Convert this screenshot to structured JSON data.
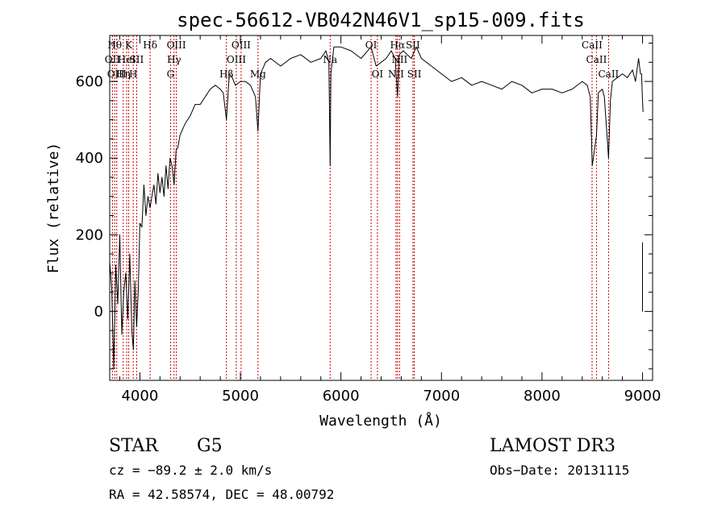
{
  "chart_data": {
    "type": "line",
    "title": "spec-56612-VB042N46V1_sp15-009.fits",
    "xlabel": "Wavelength (Å)",
    "ylabel": "Flux (relative)",
    "xlim": [
      3700,
      9100
    ],
    "ylim": [
      -180,
      720
    ],
    "xticks": [
      4000,
      5000,
      6000,
      7000,
      8000,
      9000
    ],
    "yticks": [
      0,
      200,
      400,
      600
    ],
    "series": [
      {
        "name": "flux",
        "x": [
          3700,
          3720,
          3740,
          3760,
          3780,
          3800,
          3820,
          3840,
          3860,
          3880,
          3900,
          3920,
          3935,
          3950,
          3968,
          3985,
          4000,
          4020,
          4040,
          4060,
          4080,
          4101,
          4120,
          4140,
          4160,
          4180,
          4200,
          4220,
          4240,
          4260,
          4280,
          4300,
          4320,
          4340,
          4360,
          4380,
          4400,
          4450,
          4500,
          4550,
          4600,
          4650,
          4700,
          4750,
          4800,
          4830,
          4861,
          4890,
          4920,
          4950,
          5000,
          5050,
          5100,
          5150,
          5175,
          5200,
          5250,
          5300,
          5400,
          5500,
          5600,
          5700,
          5800,
          5850,
          5880,
          5893,
          5900,
          5930,
          6000,
          6100,
          6200,
          6300,
          6350,
          6400,
          6450,
          6500,
          6540,
          6563,
          6580,
          6620,
          6700,
          6750,
          6800,
          6900,
          7000,
          7100,
          7200,
          7300,
          7400,
          7500,
          7600,
          7700,
          7800,
          7900,
          8000,
          8100,
          8200,
          8300,
          8400,
          8450,
          8480,
          8500,
          8542,
          8560,
          8600,
          8620,
          8662,
          8680,
          8700,
          8750,
          8800,
          8850,
          8900,
          8930,
          8960,
          8980,
          8990,
          9000,
          9005
        ],
        "values": [
          130,
          60,
          -150,
          120,
          20,
          200,
          -60,
          50,
          100,
          -20,
          150,
          -50,
          -100,
          80,
          -40,
          60,
          230,
          220,
          330,
          250,
          300,
          270,
          300,
          330,
          280,
          360,
          310,
          350,
          300,
          380,
          320,
          400,
          380,
          330,
          420,
          430,
          460,
          490,
          510,
          540,
          540,
          560,
          580,
          590,
          580,
          570,
          500,
          620,
          610,
          590,
          600,
          600,
          590,
          560,
          470,
          620,
          650,
          660,
          640,
          660,
          670,
          650,
          660,
          680,
          650,
          380,
          620,
          690,
          690,
          680,
          660,
          690,
          640,
          650,
          660,
          680,
          660,
          560,
          670,
          680,
          660,
          690,
          660,
          640,
          620,
          600,
          610,
          590,
          600,
          590,
          580,
          600,
          590,
          570,
          580,
          580,
          570,
          580,
          600,
          590,
          560,
          380,
          460,
          570,
          580,
          560,
          400,
          550,
          600,
          610,
          620,
          610,
          630,
          600,
          660,
          620,
          620,
          550,
          520
        ]
      },
      {
        "name": "edge-drop",
        "x": [
          9000,
          9000,
          9002
        ],
        "values": [
          180,
          0,
          0
        ]
      }
    ],
    "lines": [
      {
        "wave": 3727,
        "label": "OII",
        "row": 1
      },
      {
        "wave": 3750,
        "label": "Hθ",
        "row": 0
      },
      {
        "wave": 3770,
        "label": "OIII",
        "row": 2
      },
      {
        "wave": 3835,
        "label": "Hη",
        "row": 2
      },
      {
        "wave": 3869,
        "label": "HeI",
        "row": 1
      },
      {
        "wave": 3889,
        "label": "K",
        "row": 0
      },
      {
        "wave": 3934,
        "label": "H",
        "row": 2
      },
      {
        "wave": 3968,
        "label": "SII",
        "row": 1
      },
      {
        "wave": 4102,
        "label": "Hδ",
        "row": 0
      },
      {
        "wave": 4305,
        "label": "G",
        "row": 2
      },
      {
        "wave": 4340,
        "label": "Hγ",
        "row": 1
      },
      {
        "wave": 4363,
        "label": "OIII",
        "row": 0
      },
      {
        "wave": 4861,
        "label": "Hβ",
        "row": 2
      },
      {
        "wave": 4959,
        "label": "OIII",
        "row": 1
      },
      {
        "wave": 5007,
        "label": "OIII",
        "row": 0
      },
      {
        "wave": 5175,
        "label": "Mg",
        "row": 2
      },
      {
        "wave": 5893,
        "label": "Na",
        "row": 1
      },
      {
        "wave": 6300,
        "label": "OI",
        "row": 0
      },
      {
        "wave": 6363,
        "label": "OI",
        "row": 2
      },
      {
        "wave": 6548,
        "label": "NII",
        "row": 2
      },
      {
        "wave": 6563,
        "label": "Hα",
        "row": 0
      },
      {
        "wave": 6583,
        "label": "NII",
        "row": 1
      },
      {
        "wave": 6716,
        "label": "SII",
        "row": 0
      },
      {
        "wave": 6730,
        "label": "SII",
        "row": 2
      },
      {
        "wave": 8498,
        "label": "CaII",
        "row": 0
      },
      {
        "wave": 8542,
        "label": "CaII",
        "row": 1
      },
      {
        "wave": 8662,
        "label": "CaII",
        "row": 2
      }
    ]
  },
  "info": {
    "class": "STAR",
    "subclass": "G5",
    "survey": "LAMOST DR3",
    "cz": "cz = −89.2 ± 2.0 km/s",
    "obs_date": "Obs−Date: 20131115",
    "coords": "RA =  42.58574, DEC =  48.00792"
  },
  "colors": {
    "line_marker": "#cc0000",
    "spectrum": "#000000",
    "axes": "#000000"
  }
}
